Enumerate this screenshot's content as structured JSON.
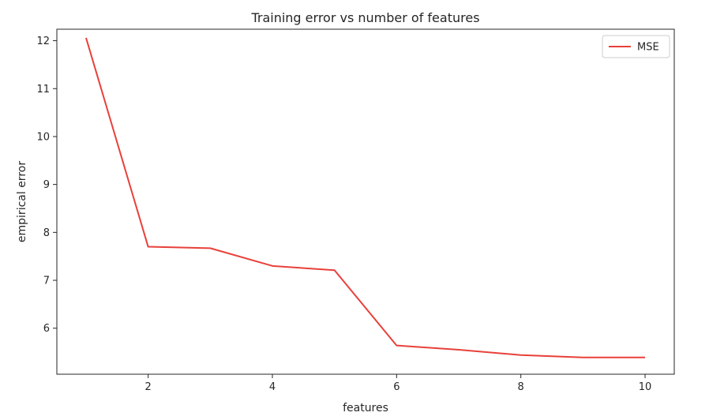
{
  "chart_data": {
    "type": "line",
    "title": "Training error vs number of features",
    "xlabel": "features",
    "ylabel": "empirical error",
    "xlim": [
      0.53,
      10.47
    ],
    "ylim": [
      5.04,
      12.24
    ],
    "xticks": [
      2,
      4,
      6,
      8,
      10
    ],
    "yticks": [
      6,
      7,
      8,
      9,
      10,
      11,
      12
    ],
    "grid": false,
    "legend_position": "top-right",
    "series": [
      {
        "name": "MSE",
        "color": "#e8403a",
        "x": [
          1,
          2,
          3,
          4,
          5,
          6,
          7,
          8,
          9,
          10
        ],
        "y": [
          12.06,
          7.7,
          7.67,
          7.3,
          7.21,
          5.64,
          5.55,
          5.44,
          5.39,
          5.39
        ]
      }
    ]
  }
}
